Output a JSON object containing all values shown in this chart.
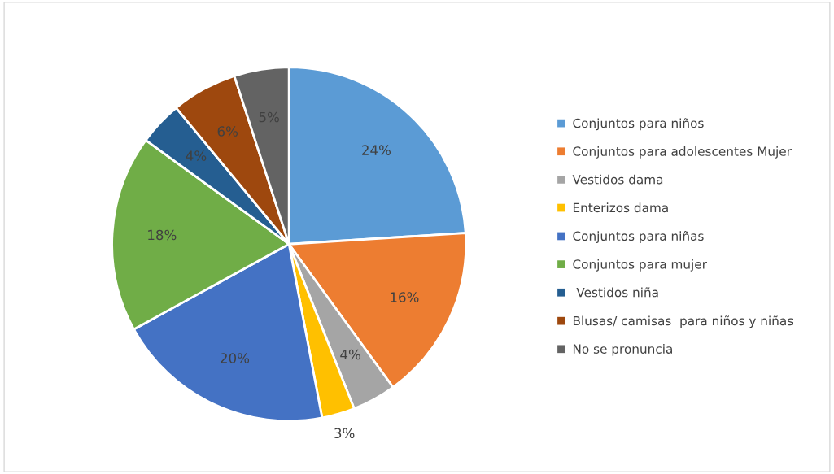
{
  "chart_data": {
    "type": "pie",
    "categories": [
      "Conjuntos para niños",
      "Conjuntos para adolescentes Mujer",
      "Vestidos dama",
      "Enterizos dama",
      "Conjuntos para niñas",
      "Conjuntos para mujer",
      " Vestidos niña",
      "Blusas/ camisas  para niños y niñas",
      "No se pronuncia"
    ],
    "values": [
      24,
      16,
      4,
      3,
      20,
      18,
      4,
      6,
      5
    ],
    "colors": [
      "#5b9bd5",
      "#ed7d31",
      "#a5a5a5",
      "#ffc000",
      "#4472c4",
      "#70ad47",
      "#255e91",
      "#9e480e",
      "#636363"
    ],
    "value_labels": [
      "24%",
      "16%",
      "4%",
      "3%",
      "20%",
      "18%",
      "4%",
      "6%",
      "5%"
    ],
    "legend": "right"
  }
}
